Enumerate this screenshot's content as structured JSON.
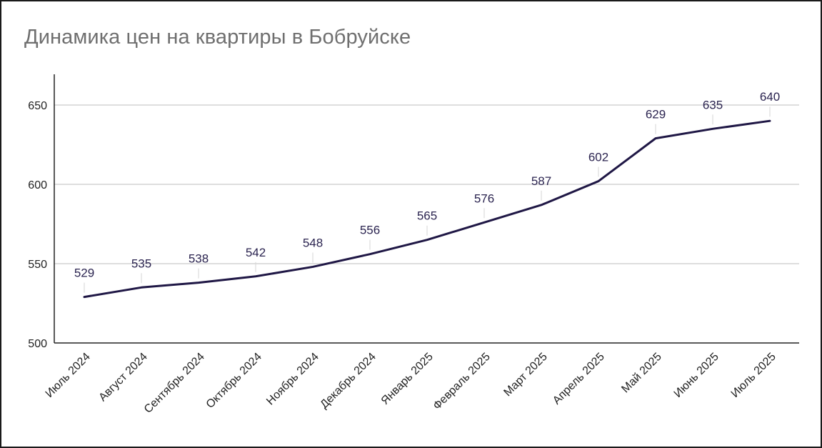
{
  "chart_data": {
    "type": "line",
    "title": "Динамика цен на квартиры в Бобруйске",
    "xlabel": "",
    "ylabel": "",
    "categories": [
      "Июль 2024",
      "Август 2024",
      "Сентябрь 2024",
      "Октябрь 2024",
      "Ноябрь 2024",
      "Декабрь 2024",
      "Январь 2025",
      "Февраль 2025",
      "Март 2025",
      "Апрель 2025",
      "Май 2025",
      "Июнь 2025",
      "Июль 2025"
    ],
    "series": [
      {
        "values": [
          529,
          535,
          538,
          542,
          548,
          556,
          565,
          576,
          587,
          602,
          629,
          635,
          640
        ],
        "color": "#1f1745"
      }
    ],
    "ylim": [
      500,
      670
    ],
    "yticks": [
      500,
      550,
      600,
      650
    ],
    "grid": true,
    "legend": "none",
    "data_labels": true
  }
}
